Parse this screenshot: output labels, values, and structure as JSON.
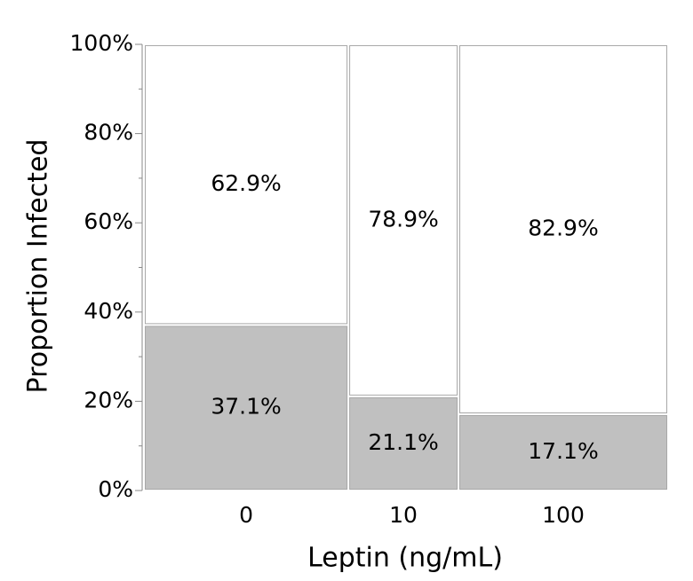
{
  "chart_data": {
    "type": "mosaic",
    "x_label": "Leptin (ng/mL)",
    "y_label": "Proportion Infected",
    "categories": [
      "0",
      "10",
      "100"
    ],
    "widths": [
      39,
      21,
      40
    ],
    "series": [
      {
        "color": "#c0c0c0",
        "values": [
          37.1,
          21.1,
          17.1
        ],
        "value_labels": [
          "37.1%",
          "21.1%",
          "17.1%"
        ]
      },
      {
        "color": "#ffffff",
        "values": [
          62.9,
          78.9,
          82.9
        ],
        "value_labels": [
          "62.9%",
          "78.9%",
          "82.9%"
        ]
      }
    ],
    "ylim": [
      0,
      100
    ],
    "yticks": [
      {
        "value": 0,
        "label": "0%"
      },
      {
        "value": 20,
        "label": "20%"
      },
      {
        "value": 40,
        "label": "40%"
      },
      {
        "value": 60,
        "label": "60%"
      },
      {
        "value": 80,
        "label": "80%"
      },
      {
        "value": 100,
        "label": "100%"
      }
    ],
    "minor_yticks": [
      10,
      30,
      50,
      70,
      90
    ]
  }
}
